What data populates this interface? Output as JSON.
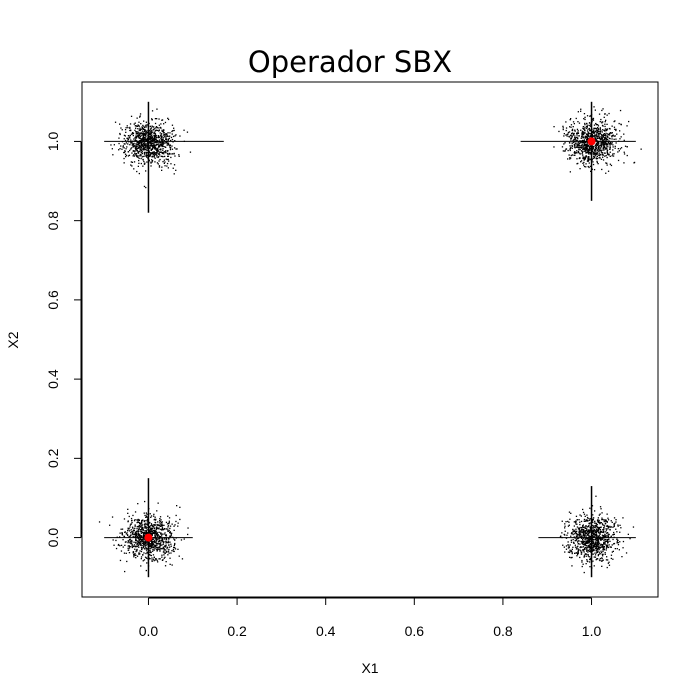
{
  "chart_data": {
    "type": "scatter",
    "title": "Operador SBX",
    "xlabel": "X1",
    "ylabel": "X2",
    "xlim": [
      -0.15,
      1.15
    ],
    "ylim": [
      -0.15,
      1.15
    ],
    "xticks": [
      "0.0",
      "0.2",
      "0.4",
      "0.6",
      "0.8",
      "1.0"
    ],
    "yticks": [
      "0.0",
      "0.2",
      "0.4",
      "0.6",
      "0.8",
      "1.0"
    ],
    "grid": false,
    "legend": "none",
    "colors": {
      "points": "#000000",
      "parents": "#ff0000"
    },
    "clusters": [
      {
        "center": [
          0.0,
          0.0
        ],
        "arm_x": [
          -0.1,
          0.1
        ],
        "arm_y": [
          -0.1,
          0.15
        ]
      },
      {
        "center": [
          0.0,
          1.0
        ],
        "arm_x": [
          -0.1,
          0.17
        ],
        "arm_y": [
          0.82,
          1.1
        ]
      },
      {
        "center": [
          1.0,
          0.0
        ],
        "arm_x": [
          0.88,
          1.1
        ],
        "arm_y": [
          -0.1,
          0.13
        ]
      },
      {
        "center": [
          1.0,
          1.0
        ],
        "arm_x": [
          0.84,
          1.1
        ],
        "arm_y": [
          0.85,
          1.1
        ]
      }
    ],
    "parents": [
      {
        "x": 0.0,
        "y": 0.0
      },
      {
        "x": 1.0,
        "y": 1.0
      }
    ]
  }
}
